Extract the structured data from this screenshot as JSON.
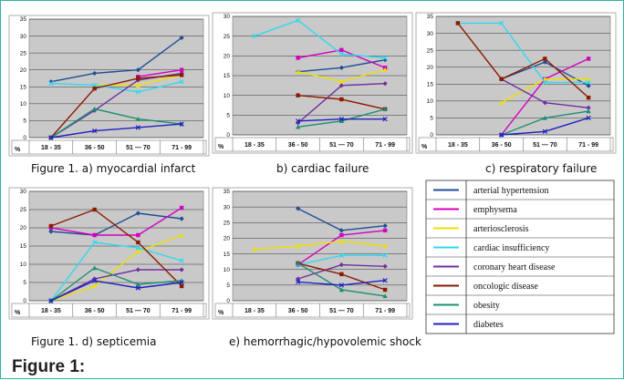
{
  "captions": {
    "a": "Figure 1. a) myocardial infarct",
    "b": "b) cardiac failure",
    "c": "c) respiratory failure",
    "d": "Figure 1. d) septicemia",
    "e": "e) hemorrhagic/hypovolemic shock"
  },
  "figure_title": "Figure 1:",
  "legend": [
    {
      "label": "arterial hypertension",
      "color": "#1f4e96"
    },
    {
      "label": "emphysema",
      "color": "#d400c0"
    },
    {
      "label": "arteriosclerosis",
      "color": "#f0e000"
    },
    {
      "label": "cardiac  insufficiency",
      "color": "#30d8f0"
    },
    {
      "label": "coronary heart disease",
      "color": "#7030a0"
    },
    {
      "label": "oncologic disease",
      "color": "#8b1a00"
    },
    {
      "label": "obesity",
      "color": "#1a9070"
    },
    {
      "label": "diabetes",
      "color": "#2020c0"
    }
  ],
  "chart_data": [
    {
      "type": "line",
      "id": "a",
      "categories": [
        "18 - 35",
        "36 - 50",
        "51 — 70",
        "71 - 99"
      ],
      "y_unit_label": "%",
      "ylim": [
        0,
        35
      ],
      "yticks": [
        0,
        5,
        10,
        15,
        20,
        25,
        30,
        35
      ],
      "grid": true,
      "series": [
        {
          "name": "arterial hypertension",
          "values": [
            16.5,
            19,
            20,
            29.5
          ]
        },
        {
          "name": "emphysema",
          "values": [
            null,
            null,
            18,
            20
          ]
        },
        {
          "name": "arteriosclerosis",
          "values": [
            null,
            15.5,
            15.5,
            18.5
          ]
        },
        {
          "name": "cardiac  insufficiency",
          "values": [
            16,
            15.5,
            13.5,
            16.5
          ]
        },
        {
          "name": "coronary heart disease",
          "values": [
            0,
            8,
            17,
            19
          ]
        },
        {
          "name": "oncologic disease",
          "values": [
            0,
            14.5,
            17.5,
            18.5
          ]
        },
        {
          "name": "obesity",
          "values": [
            0,
            8.5,
            5.5,
            4
          ]
        },
        {
          "name": "diabetes",
          "values": [
            0,
            2,
            3,
            4
          ]
        }
      ]
    },
    {
      "type": "line",
      "id": "b",
      "categories": [
        "18 - 35",
        "36 - 50",
        "51 — 70",
        "71 - 99"
      ],
      "y_unit_label": "%",
      "ylim": [
        0,
        30
      ],
      "yticks": [
        0,
        5,
        10,
        15,
        20,
        25,
        30
      ],
      "grid": true,
      "series": [
        {
          "name": "arterial hypertension",
          "values": [
            null,
            16,
            17,
            19
          ]
        },
        {
          "name": "emphysema",
          "values": [
            null,
            19.5,
            21.5,
            17
          ]
        },
        {
          "name": "arteriosclerosis",
          "values": [
            null,
            16,
            13.5,
            16.5
          ]
        },
        {
          "name": "cardiac  insufficiency",
          "values": [
            25,
            29,
            20.5,
            19.5
          ]
        },
        {
          "name": "coronary heart disease",
          "values": [
            null,
            3,
            12.5,
            13
          ]
        },
        {
          "name": "oncologic disease",
          "values": [
            null,
            10,
            9,
            6.5
          ]
        },
        {
          "name": "obesity",
          "values": [
            null,
            2,
            3.5,
            6.5
          ]
        },
        {
          "name": "diabetes",
          "values": [
            null,
            3.5,
            4,
            4
          ]
        }
      ]
    },
    {
      "type": "line",
      "id": "c",
      "categories": [
        "18 - 35",
        "36 - 50",
        "51 — 70",
        "71 - 99"
      ],
      "y_unit_label": "%",
      "ylim": [
        0,
        35
      ],
      "yticks": [
        0,
        5,
        10,
        15,
        20,
        25,
        30,
        35
      ],
      "grid": true,
      "series": [
        {
          "name": "arterial hypertension",
          "values": [
            null,
            16.5,
            21.5,
            14.5
          ]
        },
        {
          "name": "emphysema",
          "values": [
            null,
            0,
            16.5,
            22.5
          ]
        },
        {
          "name": "arteriosclerosis",
          "values": [
            null,
            9.5,
            16.5,
            16.5
          ]
        },
        {
          "name": "cardiac  insufficiency",
          "values": [
            33,
            33,
            15.5,
            15.5
          ]
        },
        {
          "name": "coronary heart disease",
          "values": [
            null,
            16.5,
            9.5,
            8
          ]
        },
        {
          "name": "oncologic disease",
          "values": [
            33,
            16.5,
            22.5,
            11
          ]
        },
        {
          "name": "obesity",
          "values": [
            null,
            0,
            5,
            7
          ]
        },
        {
          "name": "diabetes",
          "values": [
            null,
            0,
            1,
            5
          ]
        }
      ]
    },
    {
      "type": "line",
      "id": "d",
      "categories": [
        "18 - 35",
        "36 - 50",
        "51 — 70",
        "71 - 99"
      ],
      "y_unit_label": "%",
      "ylim": [
        0,
        30
      ],
      "yticks": [
        0,
        5,
        10,
        15,
        20,
        25,
        30
      ],
      "grid": true,
      "series": [
        {
          "name": "arterial hypertension",
          "values": [
            19,
            18,
            24,
            22.5
          ]
        },
        {
          "name": "emphysema",
          "values": [
            20,
            18,
            18,
            25.5
          ]
        },
        {
          "name": "arteriosclerosis",
          "values": [
            0,
            4,
            13.5,
            18
          ]
        },
        {
          "name": "cardiac  insufficiency",
          "values": [
            0,
            16,
            14.5,
            11
          ]
        },
        {
          "name": "coronary heart disease",
          "values": [
            0,
            6,
            8.5,
            8.5
          ]
        },
        {
          "name": "oncologic disease",
          "values": [
            20.5,
            25,
            16,
            4
          ]
        },
        {
          "name": "obesity",
          "values": [
            0,
            9,
            4.5,
            5.5
          ]
        },
        {
          "name": "diabetes",
          "values": [
            0,
            5.5,
            3.5,
            5
          ]
        }
      ]
    },
    {
      "type": "line",
      "id": "e",
      "categories": [
        "18 - 35",
        "36 - 50",
        "51 — 70",
        "71 - 99"
      ],
      "y_unit_label": "%",
      "ylim": [
        0,
        35
      ],
      "yticks": [
        0,
        5,
        10,
        15,
        20,
        25,
        30,
        35
      ],
      "grid": true,
      "series": [
        {
          "name": "arterial hypertension",
          "values": [
            null,
            29.5,
            22.5,
            24
          ]
        },
        {
          "name": "emphysema",
          "values": [
            null,
            11.5,
            21,
            22.5
          ]
        },
        {
          "name": "arteriosclerosis",
          "values": [
            16.5,
            17.5,
            19,
            17.5
          ]
        },
        {
          "name": "cardiac  insufficiency",
          "values": [
            null,
            11.5,
            14.5,
            14.5
          ]
        },
        {
          "name": "coronary heart disease",
          "values": [
            null,
            7,
            11.5,
            11
          ]
        },
        {
          "name": "oncologic disease",
          "values": [
            null,
            12,
            8.5,
            3.5
          ]
        },
        {
          "name": "obesity",
          "values": [
            null,
            12,
            3.5,
            1.5
          ]
        },
        {
          "name": "diabetes",
          "values": [
            null,
            6,
            5,
            6.5
          ]
        }
      ]
    }
  ]
}
